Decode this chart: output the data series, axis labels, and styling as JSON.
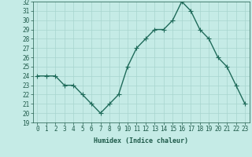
{
  "title": "",
  "xlabel": "Humidex (Indice chaleur)",
  "x": [
    0,
    1,
    2,
    3,
    4,
    5,
    6,
    7,
    8,
    9,
    10,
    11,
    12,
    13,
    14,
    15,
    16,
    17,
    18,
    19,
    20,
    21,
    22,
    23
  ],
  "y": [
    24,
    24,
    24,
    23,
    23,
    22,
    21,
    20,
    21,
    22,
    25,
    27,
    28,
    29,
    29,
    30,
    32,
    31,
    29,
    28,
    26,
    25,
    23,
    21
  ],
  "line_color": "#1f6b5a",
  "bg_color": "#c5ebe6",
  "grid_color": "#a8d5ce",
  "label_color": "#1f5a4a",
  "ylim_min": 19,
  "ylim_max": 32,
  "yticks": [
    19,
    20,
    21,
    22,
    23,
    24,
    25,
    26,
    27,
    28,
    29,
    30,
    31,
    32
  ],
  "xticks": [
    0,
    1,
    2,
    3,
    4,
    5,
    6,
    7,
    8,
    9,
    10,
    11,
    12,
    13,
    14,
    15,
    16,
    17,
    18,
    19,
    20,
    21,
    22,
    23
  ],
  "marker": "+",
  "linewidth": 1.0,
  "markersize": 4,
  "tick_fontsize": 5.5,
  "xlabel_fontsize": 6.0
}
